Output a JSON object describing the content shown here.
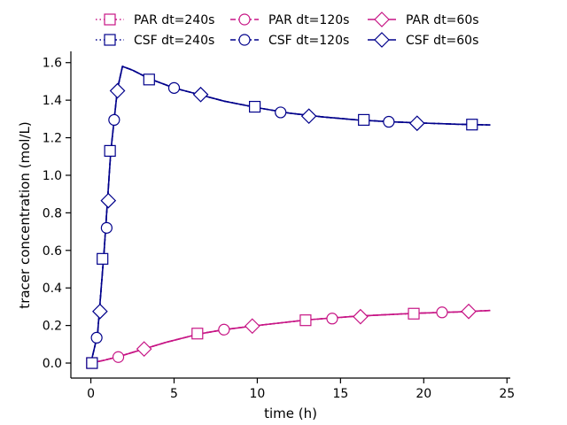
{
  "chart_data": {
    "type": "line",
    "title": "",
    "xlabel": "time (h)",
    "ylabel": "tracer concentration (mol/L)",
    "xlim": [
      -1.2,
      25.2
    ],
    "ylim": [
      -0.08,
      1.66
    ],
    "xticks": [
      0,
      5,
      10,
      15,
      20,
      25
    ],
    "yticks": [
      0.0,
      0.2,
      0.4,
      0.6,
      0.8,
      1.0,
      1.2,
      1.4,
      1.6
    ],
    "grid": false,
    "legend_position": "top-center",
    "colors": {
      "PAR": "#c71585",
      "CSF": "#00008b"
    },
    "series": [
      {
        "name": "PAR dt=240s",
        "group": "PAR",
        "linestyle": "dotted",
        "marker": "square",
        "points": [
          [
            0,
            0
          ],
          [
            0.8,
            0.015
          ],
          [
            1.7,
            0.035
          ],
          [
            3,
            0.07
          ],
          [
            4.5,
            0.11
          ],
          [
            6.5,
            0.155
          ],
          [
            8,
            0.178
          ],
          [
            10,
            0.2
          ],
          [
            13,
            0.23
          ],
          [
            16,
            0.25
          ],
          [
            19.5,
            0.265
          ],
          [
            22,
            0.272
          ],
          [
            24,
            0.28
          ]
        ],
        "marker_points": [
          [
            0.07,
            0.0
          ],
          [
            6.4,
            0.157
          ],
          [
            12.9,
            0.228
          ],
          [
            19.4,
            0.263
          ]
        ]
      },
      {
        "name": "PAR dt=120s",
        "group": "PAR",
        "linestyle": "dashed",
        "marker": "circle",
        "points": [
          [
            0,
            0
          ],
          [
            0.8,
            0.015
          ],
          [
            1.7,
            0.035
          ],
          [
            3,
            0.07
          ],
          [
            4.5,
            0.11
          ],
          [
            6.5,
            0.155
          ],
          [
            8,
            0.178
          ],
          [
            10,
            0.2
          ],
          [
            13,
            0.23
          ],
          [
            16,
            0.25
          ],
          [
            19.5,
            0.265
          ],
          [
            22,
            0.272
          ],
          [
            24,
            0.28
          ]
        ],
        "marker_points": [
          [
            1.65,
            0.032
          ],
          [
            8.0,
            0.178
          ],
          [
            14.5,
            0.237
          ],
          [
            21.1,
            0.27
          ]
        ]
      },
      {
        "name": "PAR dt=60s",
        "group": "PAR",
        "linestyle": "solid",
        "marker": "diamond",
        "points": [
          [
            0,
            0
          ],
          [
            0.8,
            0.015
          ],
          [
            1.7,
            0.035
          ],
          [
            3,
            0.07
          ],
          [
            4.5,
            0.11
          ],
          [
            6.5,
            0.155
          ],
          [
            8,
            0.178
          ],
          [
            10,
            0.2
          ],
          [
            13,
            0.23
          ],
          [
            16,
            0.25
          ],
          [
            19.5,
            0.265
          ],
          [
            22,
            0.272
          ],
          [
            24,
            0.28
          ]
        ],
        "marker_points": [
          [
            3.2,
            0.075
          ],
          [
            9.7,
            0.197
          ],
          [
            16.2,
            0.247
          ],
          [
            22.7,
            0.275
          ]
        ]
      },
      {
        "name": "CSF dt=240s",
        "group": "CSF",
        "linestyle": "dotted",
        "marker": "square",
        "points": [
          [
            0,
            0
          ],
          [
            0.4,
            0.15
          ],
          [
            0.8,
            0.6
          ],
          [
            1.2,
            1.13
          ],
          [
            1.6,
            1.46
          ],
          [
            1.9,
            1.58
          ],
          [
            2.5,
            1.56
          ],
          [
            3.5,
            1.515
          ],
          [
            5,
            1.465
          ],
          [
            6.5,
            1.43
          ],
          [
            8,
            1.395
          ],
          [
            10,
            1.36
          ],
          [
            12,
            1.33
          ],
          [
            14,
            1.31
          ],
          [
            16,
            1.295
          ],
          [
            18,
            1.285
          ],
          [
            20,
            1.278
          ],
          [
            22,
            1.272
          ],
          [
            24,
            1.268
          ]
        ],
        "marker_points": [
          [
            0.07,
            0.0
          ],
          [
            0.7,
            0.555
          ],
          [
            1.15,
            1.13
          ],
          [
            3.5,
            1.51
          ],
          [
            9.85,
            1.365
          ],
          [
            16.4,
            1.295
          ],
          [
            22.9,
            1.27
          ]
        ]
      },
      {
        "name": "CSF dt=120s",
        "group": "CSF",
        "linestyle": "dashed",
        "marker": "circle",
        "points": [
          [
            0,
            0
          ],
          [
            0.4,
            0.15
          ],
          [
            0.8,
            0.6
          ],
          [
            1.2,
            1.13
          ],
          [
            1.6,
            1.46
          ],
          [
            1.9,
            1.58
          ],
          [
            2.5,
            1.56
          ],
          [
            3.5,
            1.515
          ],
          [
            5,
            1.465
          ],
          [
            6.5,
            1.43
          ],
          [
            8,
            1.395
          ],
          [
            10,
            1.36
          ],
          [
            12,
            1.33
          ],
          [
            14,
            1.31
          ],
          [
            16,
            1.295
          ],
          [
            18,
            1.285
          ],
          [
            20,
            1.278
          ],
          [
            22,
            1.272
          ],
          [
            24,
            1.268
          ]
        ],
        "marker_points": [
          [
            0.35,
            0.135
          ],
          [
            0.95,
            0.72
          ],
          [
            1.4,
            1.295
          ],
          [
            5.0,
            1.465
          ],
          [
            11.4,
            1.335
          ],
          [
            17.9,
            1.285
          ]
        ]
      },
      {
        "name": "CSF dt=60s",
        "group": "CSF",
        "linestyle": "solid",
        "marker": "diamond",
        "points": [
          [
            0,
            0
          ],
          [
            0.4,
            0.15
          ],
          [
            0.8,
            0.6
          ],
          [
            1.2,
            1.13
          ],
          [
            1.6,
            1.46
          ],
          [
            1.9,
            1.58
          ],
          [
            2.5,
            1.56
          ],
          [
            3.5,
            1.515
          ],
          [
            5,
            1.465
          ],
          [
            6.5,
            1.43
          ],
          [
            8,
            1.395
          ],
          [
            10,
            1.36
          ],
          [
            12,
            1.33
          ],
          [
            14,
            1.31
          ],
          [
            16,
            1.295
          ],
          [
            18,
            1.285
          ],
          [
            20,
            1.278
          ],
          [
            22,
            1.272
          ],
          [
            24,
            1.268
          ]
        ],
        "marker_points": [
          [
            0.55,
            0.275
          ],
          [
            1.05,
            0.865
          ],
          [
            1.6,
            1.45
          ],
          [
            6.6,
            1.43
          ],
          [
            13.1,
            1.315
          ],
          [
            19.6,
            1.277
          ]
        ]
      }
    ]
  }
}
